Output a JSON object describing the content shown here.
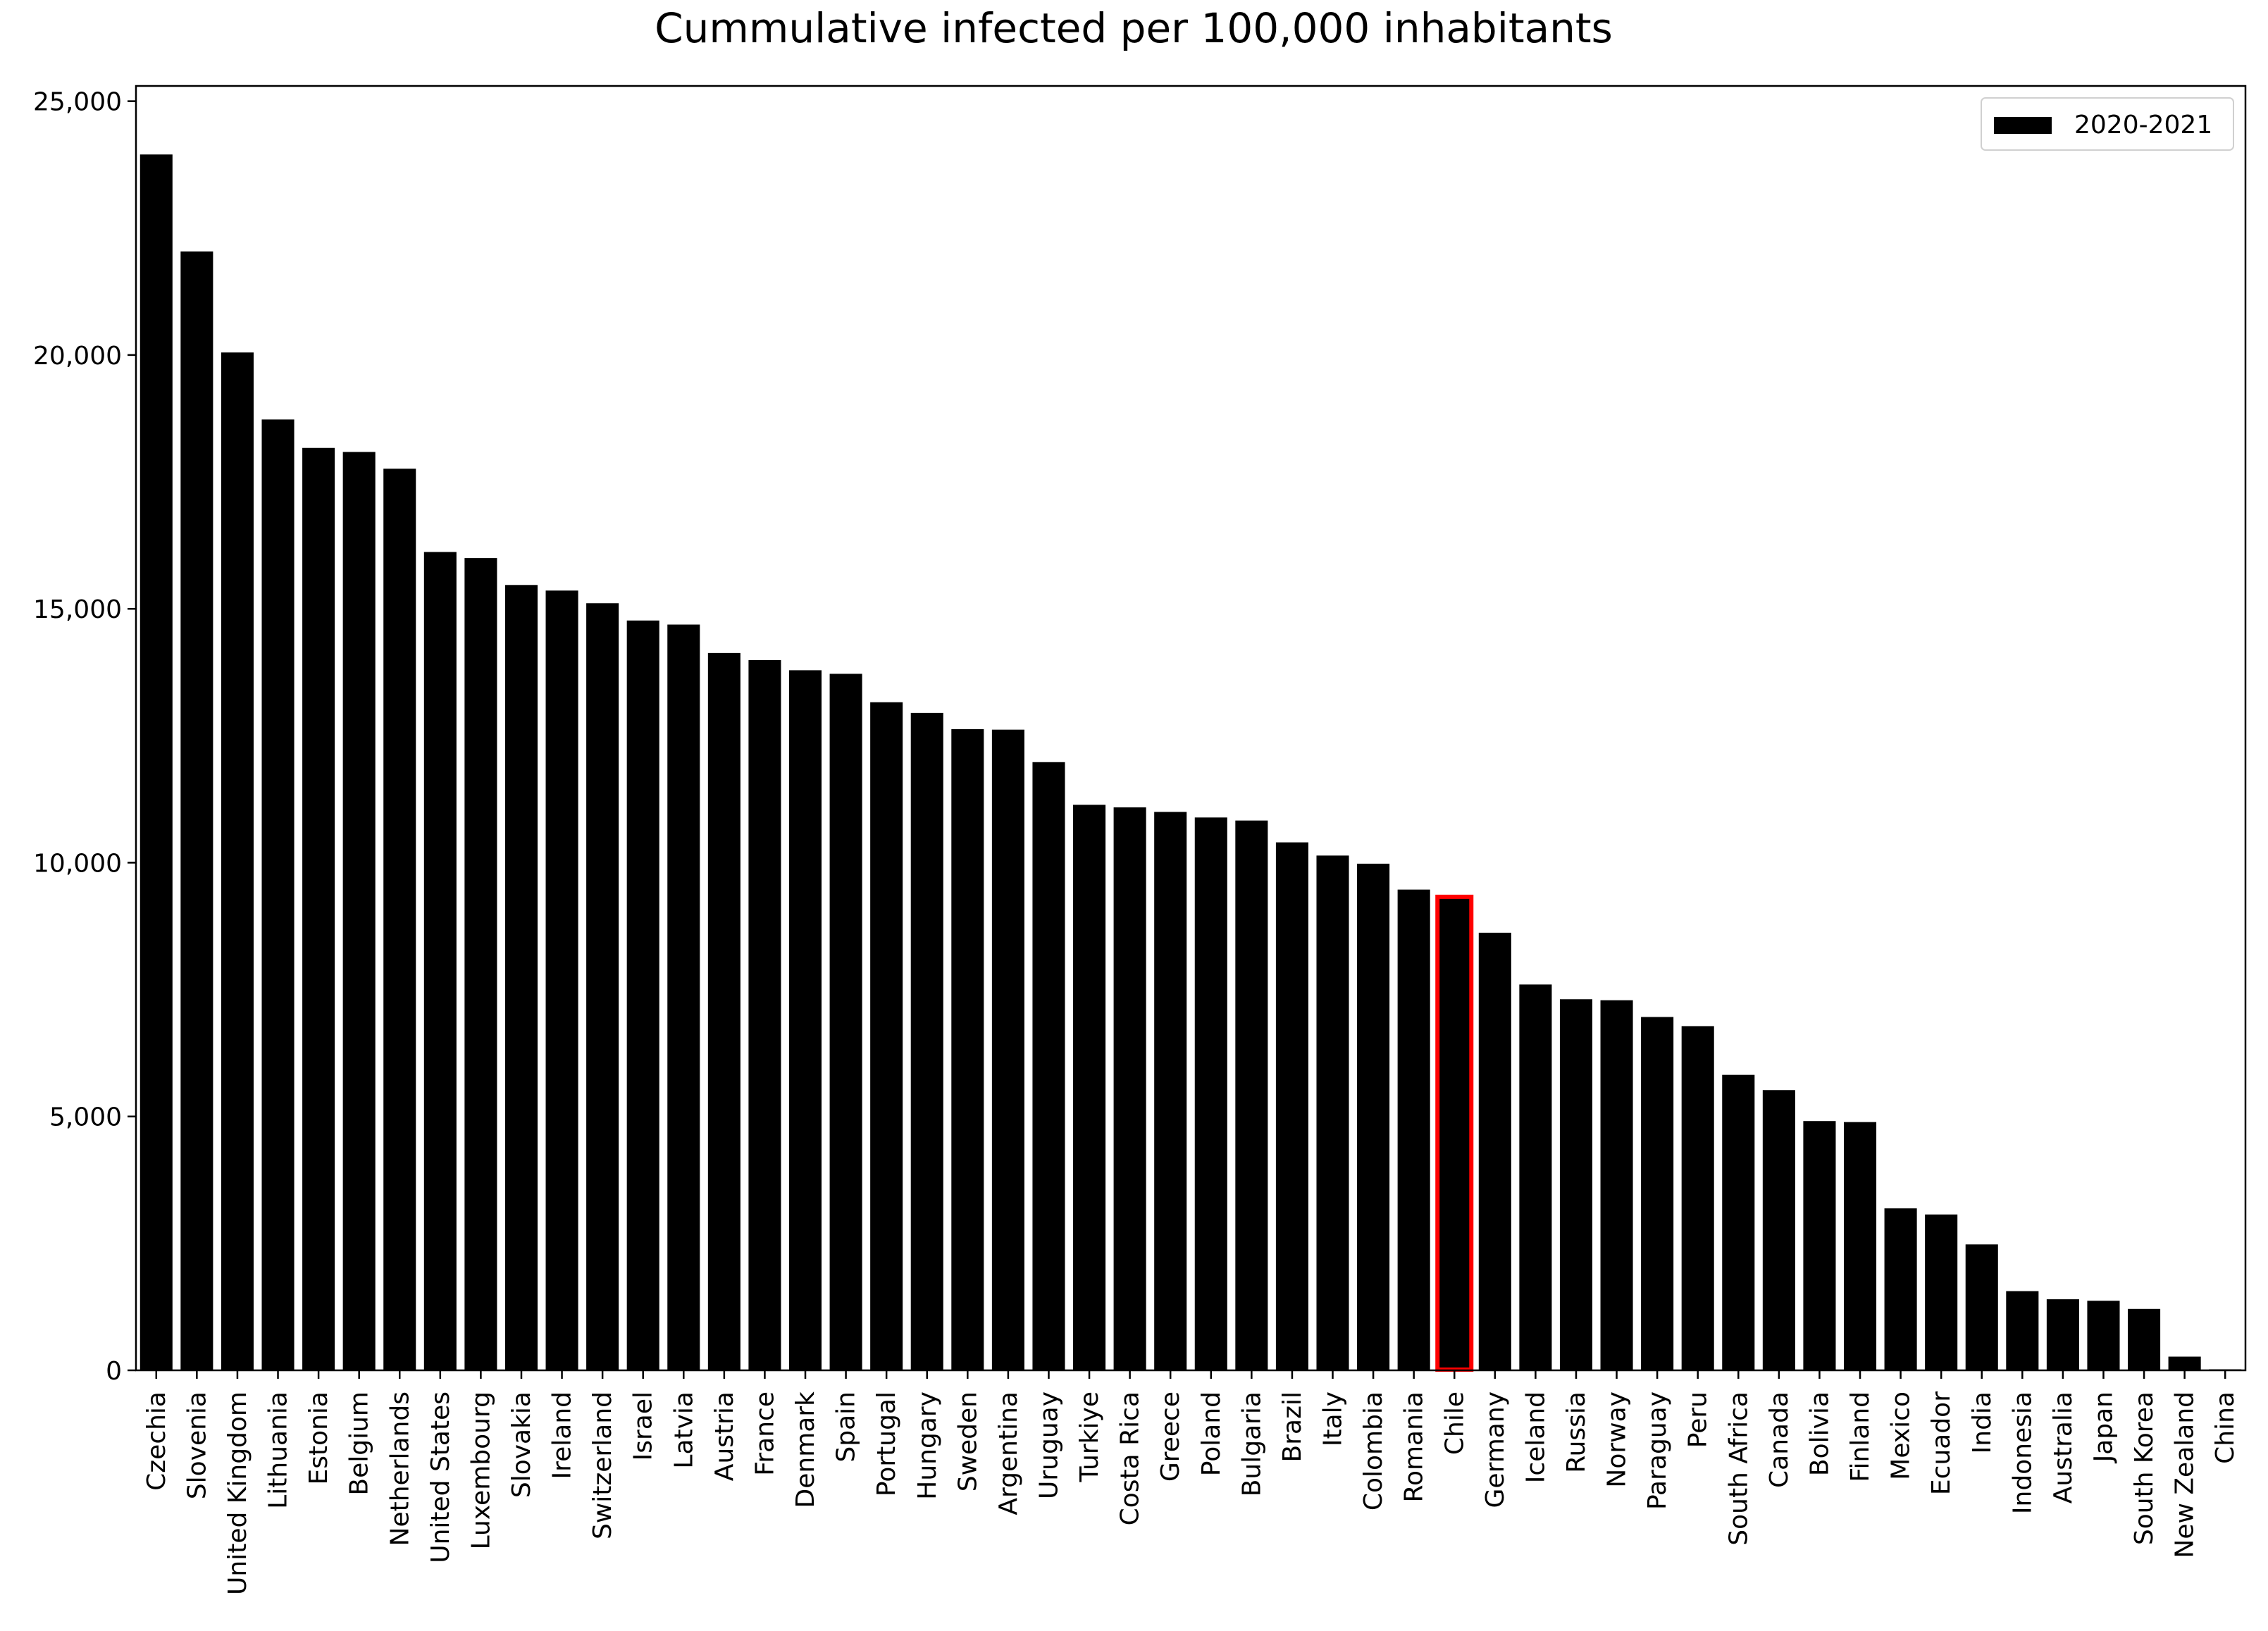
{
  "chart_data": {
    "type": "bar",
    "title": "Cummulative infected per 100,000 inhabitants",
    "xlabel": "",
    "ylabel": "",
    "ylim": [
      0,
      25300
    ],
    "yticks": [
      0,
      5000,
      10000,
      15000,
      20000,
      25000
    ],
    "ytick_labels": [
      "0",
      "5,000",
      "10,000",
      "15,000",
      "20,000",
      "25,000"
    ],
    "grid": false,
    "legend_position": "top-right",
    "categories": [
      "Czechia",
      "Slovenia",
      "United Kingdom",
      "Lithuania",
      "Estonia",
      "Belgium",
      "Netherlands",
      "United States",
      "Luxembourg",
      "Slovakia",
      "Ireland",
      "Switzerland",
      "Israel",
      "Latvia",
      "Austria",
      "France",
      "Denmark",
      "Spain",
      "Portugal",
      "Hungary",
      "Sweden",
      "Argentina",
      "Uruguay",
      "Turkiye",
      "Costa Rica",
      "Greece",
      "Poland",
      "Bulgaria",
      "Brazil",
      "Italy",
      "Colombia",
      "Romania",
      "Chile",
      "Germany",
      "Iceland",
      "Russia",
      "Norway",
      "Paraguay",
      "Peru",
      "South Africa",
      "Canada",
      "Bolivia",
      "Finland",
      "Mexico",
      "Ecuador",
      "India",
      "Indonesia",
      "Australia",
      "Japan",
      "South Korea",
      "New Zealand",
      "China"
    ],
    "series": [
      {
        "name": "2020-2021",
        "color": "#000000",
        "values": [
          23950,
          22040,
          20050,
          18730,
          18170,
          18090,
          17760,
          16120,
          16000,
          15470,
          15360,
          15110,
          14770,
          14690,
          14130,
          13990,
          13790,
          13720,
          13160,
          12950,
          12630,
          12620,
          11980,
          11140,
          11090,
          11000,
          10890,
          10830,
          10400,
          10140,
          9980,
          9470,
          9300,
          8620,
          7600,
          7310,
          7290,
          6960,
          6780,
          5820,
          5520,
          4910,
          4890,
          3190,
          3070,
          2480,
          1560,
          1400,
          1370,
          1210,
          270,
          20
        ]
      }
    ],
    "highlight": {
      "category": "Chile",
      "outline_color": "#ff0000"
    }
  }
}
